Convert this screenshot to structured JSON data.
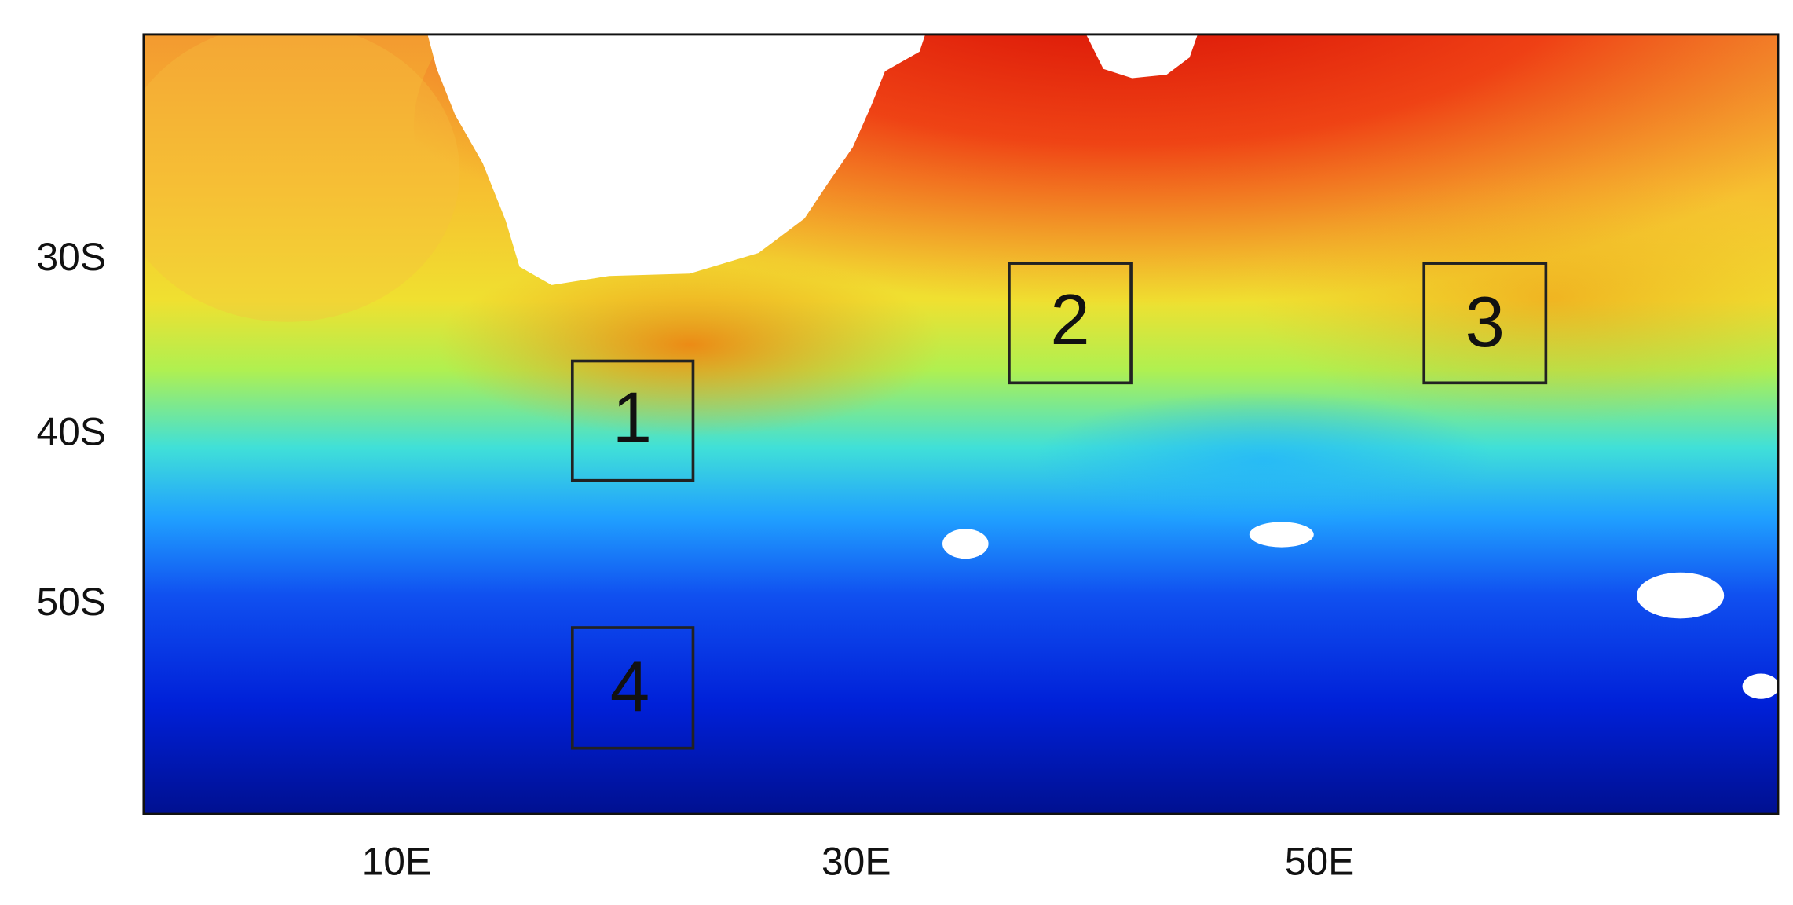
{
  "y_ticks": [
    "30S",
    "40S",
    "50S"
  ],
  "x_ticks": [
    "10E",
    "30E",
    "50E"
  ],
  "boxes": [
    {
      "label": "1"
    },
    {
      "label": "2"
    },
    {
      "label": "3"
    },
    {
      "label": "4"
    }
  ]
}
